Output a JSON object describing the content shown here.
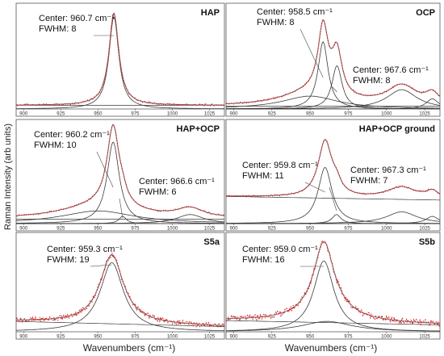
{
  "figure": {
    "ylabel": "Raman Intensity (arb units)",
    "xlabel_left": "Wavenumbers (cm⁻¹)",
    "xlabel_right": "Wavenumbers (cm⁻¹)"
  },
  "colors": {
    "measured": "#d42020",
    "fit_sum": "#7a7a7a",
    "component": "#3a3a3a",
    "frame": "#555555",
    "tick_text": "#333333"
  },
  "chart_data": [
    {
      "type": "line",
      "title": "HAP",
      "xlim": [
        895,
        1035
      ],
      "ylim": [
        0,
        1.15
      ],
      "xticks": [
        "900",
        "925",
        "950",
        "975",
        "1000",
        "1025"
      ],
      "grid": false,
      "annotations": [
        {
          "lines": [
            "Center: 960.7 cm⁻¹",
            "FWHM: 8"
          ],
          "target_x": 960.7
        }
      ],
      "peaks": [
        {
          "center": 960.7,
          "fwhm": 8,
          "amplitude": 1.0
        }
      ],
      "baseline": [
        0.04,
        0.0
      ],
      "noise_level": 0.01
    },
    {
      "type": "line",
      "title": "OCP",
      "xlim": [
        895,
        1035
      ],
      "ylim": [
        0,
        1.15
      ],
      "xticks": [
        "900",
        "925",
        "950",
        "975",
        "1000",
        "1025"
      ],
      "grid": false,
      "annotations": [
        {
          "lines": [
            "Center: 958.5 cm⁻¹",
            "FWHM: 8"
          ],
          "target_x": 958.5
        },
        {
          "lines": [
            "Center: 967.6 cm⁻¹",
            "FWHM: 8"
          ],
          "target_x": 967.6
        }
      ],
      "peaks": [
        {
          "center": 958.5,
          "fwhm": 8,
          "amplitude": 0.73
        },
        {
          "center": 967.6,
          "fwhm": 8,
          "amplitude": 0.47
        },
        {
          "center": 1010,
          "fwhm": 24,
          "amplitude": 0.21
        },
        {
          "center": 1030,
          "fwhm": 10,
          "amplitude": 0.11
        },
        {
          "center": 950,
          "fwhm": 45,
          "amplitude": 0.14
        }
      ],
      "baseline": [
        0.03,
        0.0
      ],
      "noise_level": 0.008
    },
    {
      "type": "line",
      "title": "HAP+OCP",
      "xlim": [
        895,
        1035
      ],
      "ylim": [
        0,
        1.15
      ],
      "xticks": [
        "900",
        "925",
        "950",
        "975",
        "1000",
        "1025"
      ],
      "grid": false,
      "annotations": [
        {
          "lines": [
            "Center: 960.2 cm⁻¹",
            "FWHM: 10"
          ],
          "target_x": 960.2
        },
        {
          "lines": [
            "Center: 966.6 cm⁻¹",
            "FWHM: 6"
          ],
          "target_x": 966.6
        }
      ],
      "peaks": [
        {
          "center": 960.2,
          "fwhm": 10,
          "amplitude": 0.9
        },
        {
          "center": 966.6,
          "fwhm": 6,
          "amplitude": 0.08
        },
        {
          "center": 950,
          "fwhm": 60,
          "amplitude": 0.14
        },
        {
          "center": 1012,
          "fwhm": 22,
          "amplitude": 0.1
        }
      ],
      "baseline": [
        0.05,
        0.0
      ],
      "noise_level": 0.008
    },
    {
      "type": "line",
      "title": "HAP+OCP ground",
      "xlim": [
        895,
        1035
      ],
      "ylim": [
        0,
        1.15
      ],
      "xticks": [
        "900",
        "925",
        "950",
        "975",
        "1000",
        "1025"
      ],
      "grid": false,
      "annotations": [
        {
          "lines": [
            "Center: 959.8 cm⁻¹",
            "FWHM: 11"
          ],
          "target_x": 959.8
        },
        {
          "lines": [
            "Center: 967.3 cm⁻¹",
            "FWHM: 7"
          ],
          "target_x": 967.3
        }
      ],
      "peaks": [
        {
          "center": 959.8,
          "fwhm": 11,
          "amplitude": 0.62
        },
        {
          "center": 967.3,
          "fwhm": 7,
          "amplitude": 0.1
        },
        {
          "center": 1010,
          "fwhm": 24,
          "amplitude": 0.13
        },
        {
          "center": 1030,
          "fwhm": 10,
          "amplitude": 0.08
        }
      ],
      "baseline": [
        0.26,
        0.04
      ],
      "noise_level": 0.008
    },
    {
      "type": "line",
      "title": "S5a",
      "xlim": [
        895,
        1035
      ],
      "ylim": [
        0,
        1.15
      ],
      "xticks": [
        "900",
        "925",
        "950",
        "975",
        "1000",
        "1025"
      ],
      "grid": false,
      "annotations": [
        {
          "lines": [
            "Center: 959.3  cm⁻¹",
            "FWHM: 19"
          ],
          "target_x": 959.3
        }
      ],
      "peaks": [
        {
          "center": 959.3,
          "fwhm": 19,
          "amplitude": 0.8
        }
      ],
      "baseline": [
        0.06,
        0.06
      ],
      "noise_level": 0.03
    },
    {
      "type": "line",
      "title": "S5b",
      "xlim": [
        895,
        1035
      ],
      "ylim": [
        0,
        1.15
      ],
      "xticks": [
        "900",
        "925",
        "950",
        "975",
        "1000",
        "1025"
      ],
      "grid": false,
      "annotations": [
        {
          "lines": [
            "Center: 959.0 cm⁻¹",
            "FWHM: 16"
          ],
          "target_x": 959.0
        }
      ],
      "peaks": [
        {
          "center": 959.0,
          "fwhm": 16,
          "amplitude": 0.82
        },
        {
          "center": 961,
          "fwhm": 40,
          "amplitude": 0.12
        }
      ],
      "baseline": [
        0.08,
        0.05
      ],
      "noise_level": 0.035
    }
  ]
}
